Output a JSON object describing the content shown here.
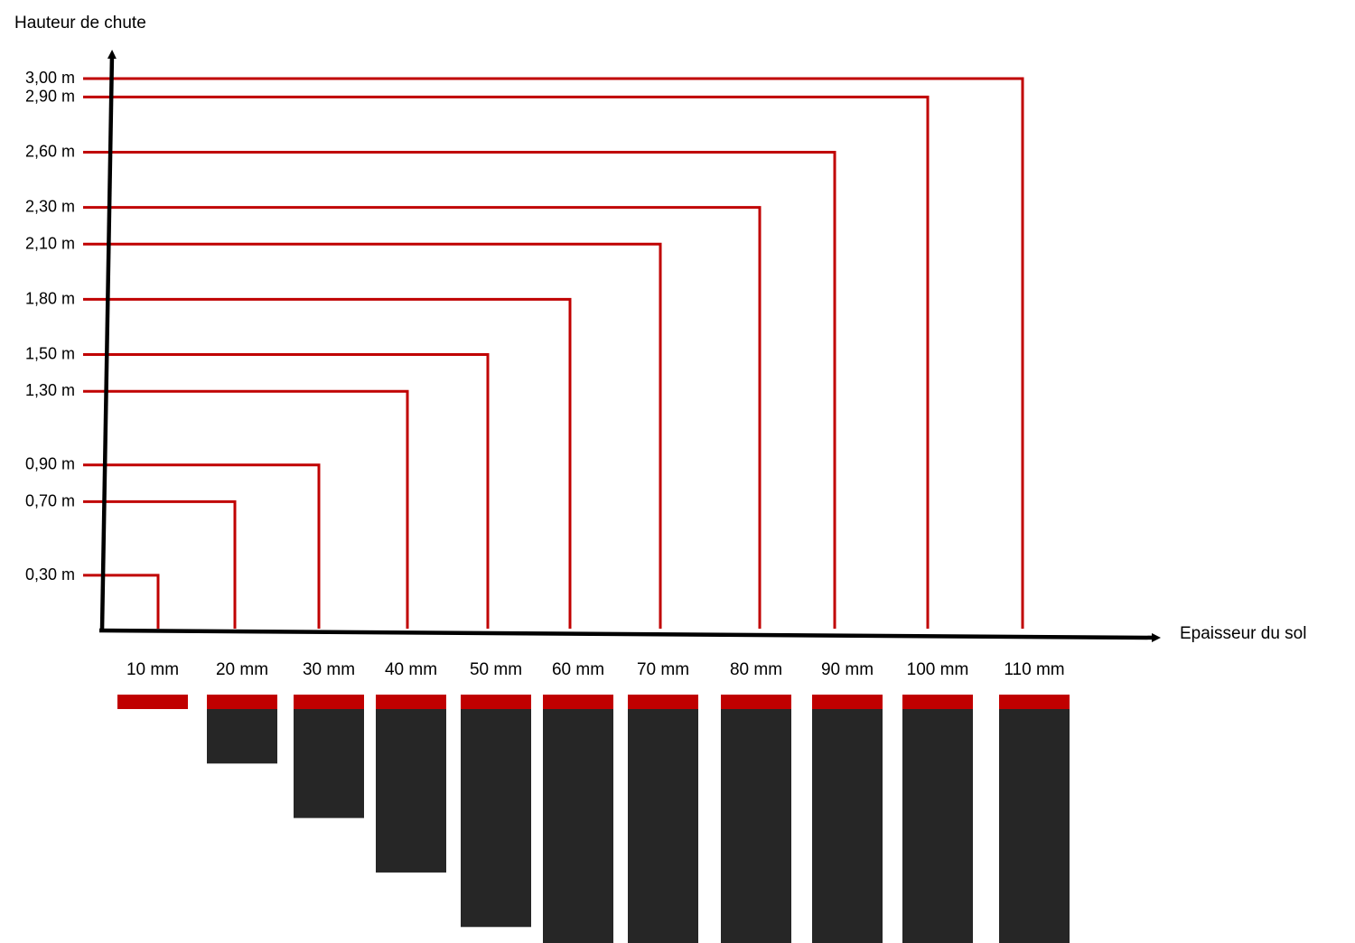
{
  "chart_data": {
    "type": "bar",
    "title": "",
    "ylabel": "Hauteur de chute",
    "xlabel": "Epaisseur du sol",
    "categories": [
      "10 mm",
      "20 mm",
      "30 mm",
      "40 mm",
      "50 mm",
      "60 mm",
      "70 mm",
      "80 mm",
      "90 mm",
      "100 mm",
      "110 mm"
    ],
    "thickness_mm": [
      10,
      20,
      30,
      40,
      50,
      60,
      70,
      80,
      90,
      100,
      110
    ],
    "heights_m": [
      0.3,
      0.7,
      0.9,
      1.3,
      1.5,
      1.8,
      2.1,
      2.3,
      2.6,
      2.9,
      3.0
    ],
    "height_labels": [
      "0,30 m",
      "0,70 m",
      "0,90 m",
      "1,30 m",
      "1,50 m",
      "1,80 m",
      "2,10 m",
      "2,30 m",
      "2,60 m",
      "2,90 m",
      "3,00 m"
    ],
    "ylim": [
      0,
      3.0
    ],
    "grid": false,
    "legend": "none",
    "colors": {
      "lines": "#c00000",
      "axes": "#000000",
      "mat_top": "#c00000",
      "mat_body": "#262626"
    }
  }
}
